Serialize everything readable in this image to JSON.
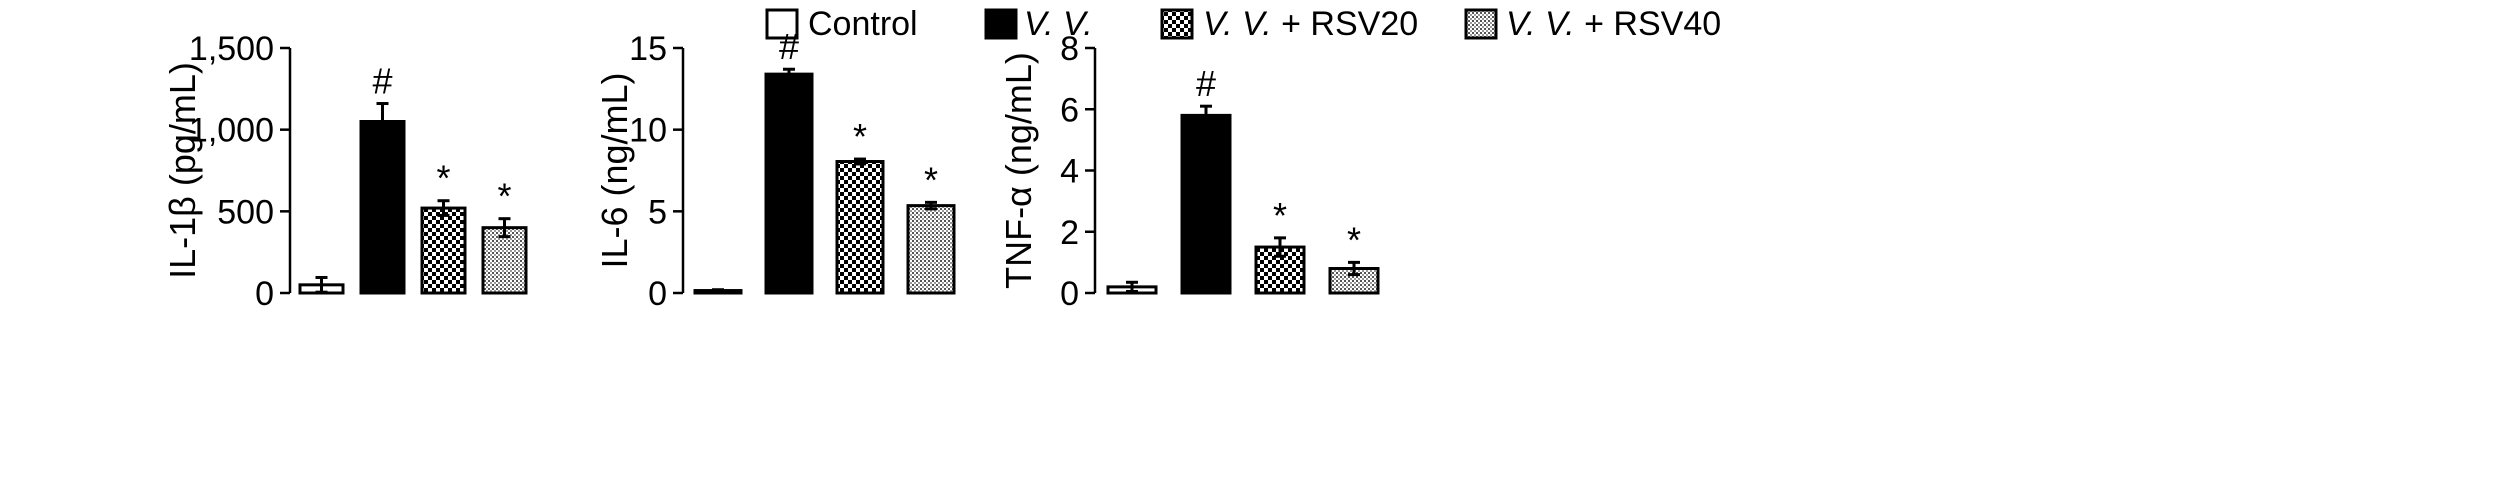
{
  "legend": {
    "items": [
      {
        "text": "Control",
        "italic_prefix": "",
        "pattern": "white"
      },
      {
        "text": "",
        "italic_prefix": "V. V.",
        "pattern": "black"
      },
      {
        "text": " + RSV20",
        "italic_prefix": "V. V.",
        "pattern": "checker"
      },
      {
        "text": " + RSV40",
        "italic_prefix": "V. V.",
        "pattern": "dots"
      }
    ]
  },
  "colors": {
    "axis": "#000000",
    "bar_edge": "#000000",
    "black_fill": "#000000",
    "white_fill": "#ffffff"
  },
  "chart_data": [
    {
      "type": "bar",
      "categories": [
        "Control",
        "V. V.",
        "V. V. + RSV20",
        "V. V. + RSV40"
      ],
      "series": [
        {
          "values": [
            50,
            1050,
            520,
            400
          ]
        }
      ],
      "errors": [
        45,
        110,
        45,
        55
      ],
      "annotations": [
        "",
        "#",
        "*",
        "*"
      ],
      "ylabel": "IL-1β (pg/mL)",
      "ylim": [
        0,
        1500
      ],
      "yticks": [
        0,
        500,
        1000,
        1500
      ],
      "ytick_labels": [
        "0",
        "500",
        "1,000",
        "1,500"
      ],
      "grid": false
    },
    {
      "type": "bar",
      "categories": [
        "Control",
        "V. V.",
        "V. V. + RSV20",
        "V. V. + RSV40"
      ],
      "series": [
        {
          "values": [
            0.15,
            13.4,
            8.05,
            5.35
          ]
        }
      ],
      "errors": [
        0.05,
        0.3,
        0.15,
        0.2
      ],
      "annotations": [
        "",
        "#",
        "*",
        "*"
      ],
      "ylabel": "IL-6 (ng/mL)",
      "ylim": [
        0,
        15
      ],
      "yticks": [
        0,
        5,
        10,
        15
      ],
      "ytick_labels": [
        "0",
        "5",
        "10",
        "15"
      ],
      "grid": false
    },
    {
      "type": "bar",
      "categories": [
        "Control",
        "V. V.",
        "V. V. + RSV20",
        "V. V. + RSV40"
      ],
      "series": [
        {
          "values": [
            0.2,
            5.8,
            1.5,
            0.8
          ]
        }
      ],
      "errors": [
        0.15,
        0.3,
        0.3,
        0.2
      ],
      "annotations": [
        "",
        "#",
        "*",
        "*"
      ],
      "ylabel": "TNF-α (ng/mL)",
      "ylim": [
        0,
        8
      ],
      "yticks": [
        0,
        2,
        4,
        6,
        8
      ],
      "ytick_labels": [
        "0",
        "2",
        "4",
        "6",
        "8"
      ],
      "grid": false
    }
  ]
}
